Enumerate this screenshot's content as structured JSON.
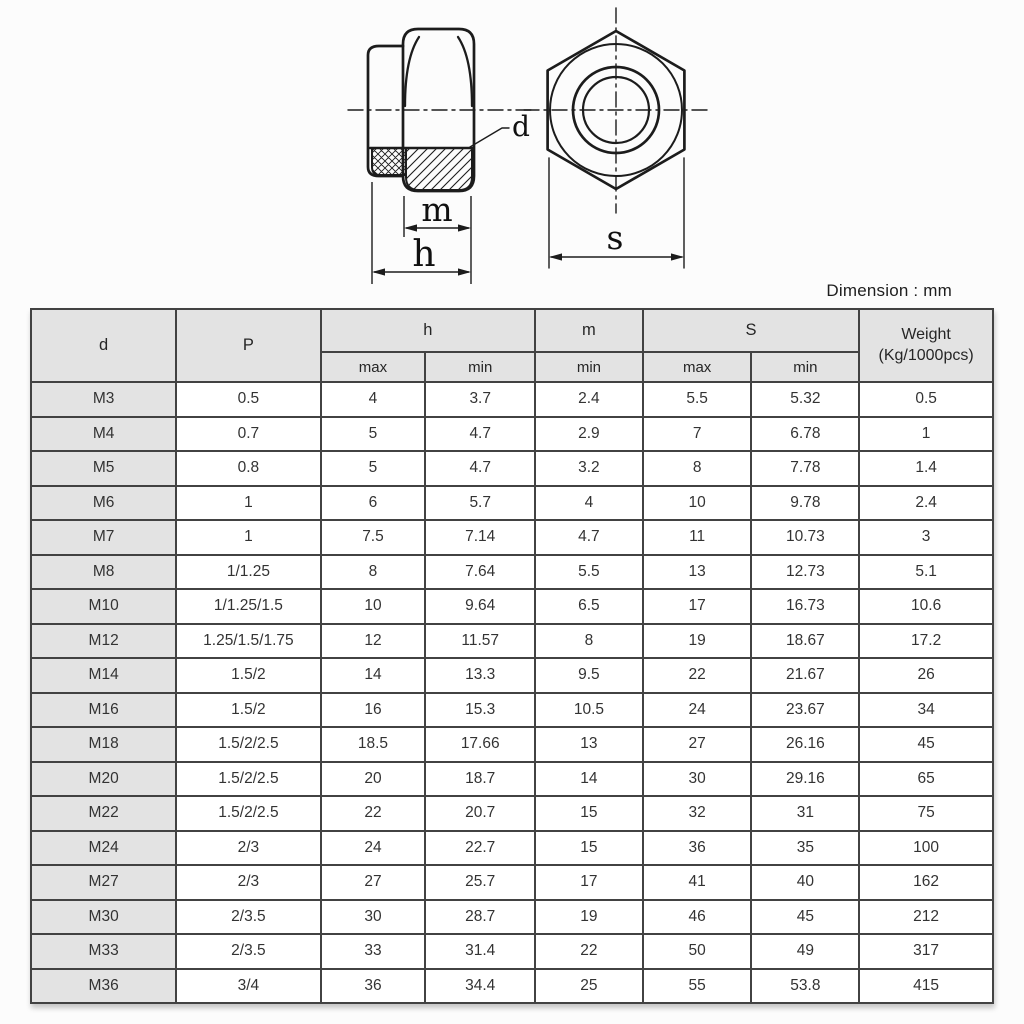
{
  "note": "Dimension : mm",
  "drawing": {
    "label_d": "d",
    "label_m": "m",
    "label_h": "h",
    "label_s": "s"
  },
  "table": {
    "header": {
      "d": "d",
      "p": "P",
      "h": "h",
      "m": "m",
      "s": "S",
      "weight_line1": "Weight",
      "weight_line2": "(Kg/1000pcs)"
    },
    "subheader": {
      "h_max": "max",
      "h_min": "min",
      "m_min": "min",
      "s_max": "max",
      "s_min": "min"
    },
    "rows": [
      [
        "M3",
        "0.5",
        "4",
        "3.7",
        "2.4",
        "5.5",
        "5.32",
        "0.5"
      ],
      [
        "M4",
        "0.7",
        "5",
        "4.7",
        "2.9",
        "7",
        "6.78",
        "1"
      ],
      [
        "M5",
        "0.8",
        "5",
        "4.7",
        "3.2",
        "8",
        "7.78",
        "1.4"
      ],
      [
        "M6",
        "1",
        "6",
        "5.7",
        "4",
        "10",
        "9.78",
        "2.4"
      ],
      [
        "M7",
        "1",
        "7.5",
        "7.14",
        "4.7",
        "11",
        "10.73",
        "3"
      ],
      [
        "M8",
        "1/1.25",
        "8",
        "7.64",
        "5.5",
        "13",
        "12.73",
        "5.1"
      ],
      [
        "M10",
        "1/1.25/1.5",
        "10",
        "9.64",
        "6.5",
        "17",
        "16.73",
        "10.6"
      ],
      [
        "M12",
        "1.25/1.5/1.75",
        "12",
        "11.57",
        "8",
        "19",
        "18.67",
        "17.2"
      ],
      [
        "M14",
        "1.5/2",
        "14",
        "13.3",
        "9.5",
        "22",
        "21.67",
        "26"
      ],
      [
        "M16",
        "1.5/2",
        "16",
        "15.3",
        "10.5",
        "24",
        "23.67",
        "34"
      ],
      [
        "M18",
        "1.5/2/2.5",
        "18.5",
        "17.66",
        "13",
        "27",
        "26.16",
        "45"
      ],
      [
        "M20",
        "1.5/2/2.5",
        "20",
        "18.7",
        "14",
        "30",
        "29.16",
        "65"
      ],
      [
        "M22",
        "1.5/2/2.5",
        "22",
        "20.7",
        "15",
        "32",
        "31",
        "75"
      ],
      [
        "M24",
        "2/3",
        "24",
        "22.7",
        "15",
        "36",
        "35",
        "100"
      ],
      [
        "M27",
        "2/3",
        "27",
        "25.7",
        "17",
        "41",
        "40",
        "162"
      ],
      [
        "M30",
        "2/3.5",
        "30",
        "28.7",
        "19",
        "46",
        "45",
        "212"
      ],
      [
        "M33",
        "2/3.5",
        "33",
        "31.4",
        "22",
        "50",
        "49",
        "317"
      ],
      [
        "M36",
        "3/4",
        "36",
        "34.4",
        "25",
        "55",
        "53.8",
        "415"
      ]
    ]
  },
  "colors": {
    "header_fill": "#e3e3e3",
    "grid_line": "#424242",
    "drawing_line": "#1c1c1c",
    "text": "#333333"
  }
}
